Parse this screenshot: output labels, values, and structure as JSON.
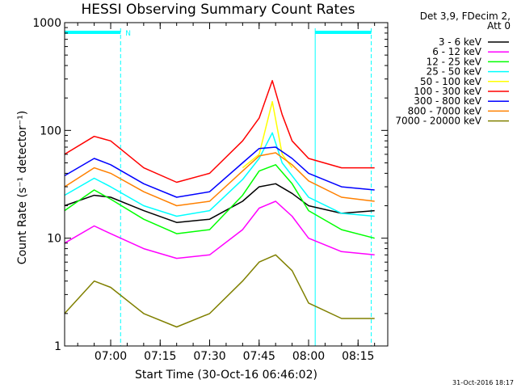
{
  "chart_data": {
    "type": "line",
    "title": "HESSI Observing Summary Count Rates",
    "xlabel": "Start Time (30-Oct-16 06:46:02)",
    "ylabel": "Count Rate (s⁻¹ detector⁻¹)",
    "y_scale": "log",
    "ylim": [
      1,
      1000
    ],
    "xlim": [
      "06:46:02",
      "08:24:00"
    ],
    "x_tick_labels": [
      "07:00",
      "07:15",
      "07:30",
      "07:45",
      "08:00",
      "08:15"
    ],
    "y_tick_labels": [
      "1",
      "10",
      "100",
      "1000"
    ],
    "grid": false,
    "legend_header": [
      "Det 3,9, FDecim 2,",
      "Att 0"
    ],
    "legend_position": "right",
    "annotation_n": "N",
    "night_intervals": [
      [
        "06:46:02",
        "07:03:00"
      ],
      [
        "08:02:00",
        "08:19:00"
      ]
    ],
    "footer_date": "31-Oct-2016 18:17",
    "series": [
      {
        "name": "3 - 6 keV",
        "color": "#000000",
        "x": [
          "06:46",
          "06:55",
          "07:00",
          "07:10",
          "07:20",
          "07:30",
          "07:40",
          "07:45",
          "07:50",
          "07:55",
          "08:00",
          "08:10",
          "08:20"
        ],
        "values": [
          20,
          25,
          24,
          18,
          14,
          15,
          22,
          30,
          32,
          26,
          20,
          17,
          18
        ]
      },
      {
        "name": "6 - 12 keV",
        "color": "#ff00ff",
        "x": [
          "06:46",
          "06:55",
          "07:00",
          "07:10",
          "07:20",
          "07:30",
          "07:40",
          "07:45",
          "07:50",
          "07:55",
          "08:00",
          "08:10",
          "08:20"
        ],
        "values": [
          9,
          13,
          11,
          8,
          6.5,
          7,
          12,
          19,
          22,
          16,
          10,
          7.5,
          7
        ]
      },
      {
        "name": "12 - 25 keV",
        "color": "#00ff00",
        "x": [
          "06:46",
          "06:55",
          "07:00",
          "07:10",
          "07:20",
          "07:30",
          "07:40",
          "07:45",
          "07:50",
          "07:55",
          "08:00",
          "08:10",
          "08:20"
        ],
        "values": [
          18,
          28,
          23,
          15,
          11,
          12,
          25,
          42,
          48,
          32,
          18,
          12,
          10
        ]
      },
      {
        "name": "25 - 50 keV",
        "color": "#00ffff",
        "x": [
          "06:46",
          "06:55",
          "07:00",
          "07:10",
          "07:20",
          "07:30",
          "07:40",
          "07:45",
          "07:49",
          "07:52",
          "07:55",
          "08:00",
          "08:10",
          "08:20"
        ],
        "values": [
          25,
          36,
          30,
          20,
          16,
          18,
          35,
          55,
          95,
          50,
          38,
          24,
          17,
          16
        ]
      },
      {
        "name": "50 - 100 keV",
        "color": "#ffff00",
        "x": [
          "07:40",
          "07:45",
          "07:49",
          "07:52",
          "07:55"
        ],
        "values": [
          45,
          60,
          185,
          60,
          45
        ]
      },
      {
        "name": "100 - 300 keV",
        "color": "#ff0000",
        "x": [
          "06:46",
          "06:55",
          "07:00",
          "07:10",
          "07:20",
          "07:30",
          "07:40",
          "07:45",
          "07:49",
          "07:52",
          "07:55",
          "08:00",
          "08:10",
          "08:20"
        ],
        "values": [
          60,
          88,
          80,
          45,
          33,
          40,
          80,
          130,
          290,
          140,
          80,
          55,
          45,
          45
        ]
      },
      {
        "name": "300 - 800 keV",
        "color": "#0000ff",
        "x": [
          "06:46",
          "06:55",
          "07:00",
          "07:10",
          "07:20",
          "07:30",
          "07:40",
          "07:45",
          "07:50",
          "07:55",
          "08:00",
          "08:10",
          "08:20"
        ],
        "values": [
          38,
          55,
          48,
          32,
          24,
          27,
          50,
          68,
          70,
          55,
          40,
          30,
          28
        ]
      },
      {
        "name": "800 - 7000 keV",
        "color": "#ff8000",
        "x": [
          "06:46",
          "06:55",
          "07:00",
          "07:10",
          "07:20",
          "07:30",
          "07:40",
          "07:45",
          "07:50",
          "07:55",
          "08:00",
          "08:10",
          "08:20"
        ],
        "values": [
          30,
          45,
          40,
          27,
          20,
          22,
          42,
          58,
          62,
          48,
          34,
          24,
          22
        ]
      },
      {
        "name": "7000 - 20000 keV",
        "color": "#808000",
        "x": [
          "06:46",
          "06:55",
          "07:00",
          "07:10",
          "07:20",
          "07:30",
          "07:40",
          "07:45",
          "07:50",
          "07:55",
          "08:00",
          "08:10",
          "08:20"
        ],
        "values": [
          2,
          4,
          3.5,
          2,
          1.5,
          2,
          4,
          6,
          7,
          5,
          2.5,
          1.8,
          1.8
        ]
      }
    ]
  }
}
